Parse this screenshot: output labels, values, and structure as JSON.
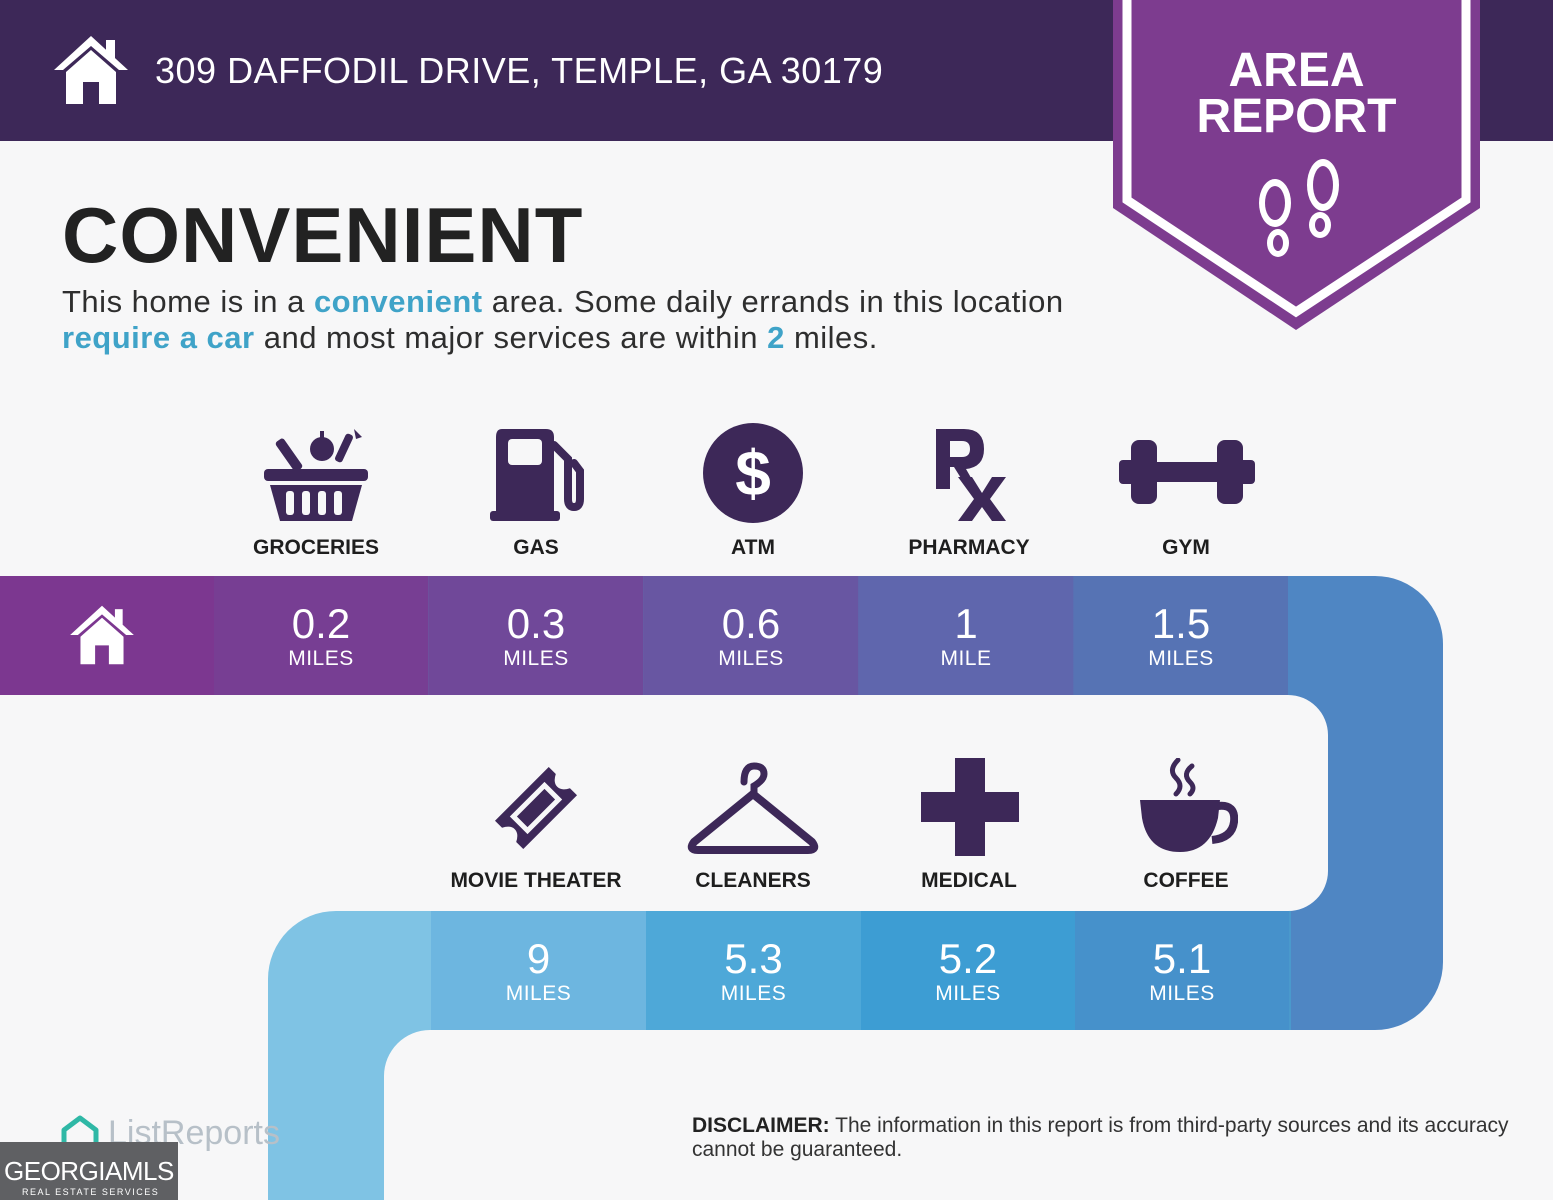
{
  "header": {
    "address": "309 DAFFODIL DRIVE, TEMPLE, GA 30179",
    "home_icon": "house-icon"
  },
  "badge": {
    "line1": "AREA",
    "line2": "REPORT",
    "icon": "footprints-icon"
  },
  "summary": {
    "headline": "CONVENIENT",
    "text_1": "This home is in a ",
    "highlight_1": "convenient",
    "text_2": " area. Some daily errands in this location ",
    "highlight_2": "require a car",
    "text_3": " and most major services are within ",
    "highlight_3": "2",
    "text_4": " miles."
  },
  "row1": [
    {
      "label": "GROCERIES",
      "distance": "0.2",
      "unit": "MILES",
      "icon": "grocery-basket-icon"
    },
    {
      "label": "GAS",
      "distance": "0.3",
      "unit": "MILES",
      "icon": "gas-pump-icon"
    },
    {
      "label": "ATM",
      "distance": "0.6",
      "unit": "MILES",
      "icon": "dollar-icon"
    },
    {
      "label": "PHARMACY",
      "distance": "1",
      "unit": "MILE",
      "icon": "rx-icon"
    },
    {
      "label": "GYM",
      "distance": "1.5",
      "unit": "MILES",
      "icon": "dumbbell-icon"
    }
  ],
  "row2": [
    {
      "label": "MOVIE THEATER",
      "distance": "9",
      "unit": "MILES",
      "icon": "ticket-icon"
    },
    {
      "label": "CLEANERS",
      "distance": "5.3",
      "unit": "MILES",
      "icon": "hanger-icon"
    },
    {
      "label": "MEDICAL",
      "distance": "5.2",
      "unit": "MILES",
      "icon": "medical-cross-icon"
    },
    {
      "label": "COFFEE",
      "distance": "5.1",
      "unit": "MILES",
      "icon": "coffee-cup-icon"
    }
  ],
  "colors": {
    "header_bg": "#3d2858",
    "badge_bg": "#7d3c8f",
    "icon_color": "#3d2858",
    "highlight": "#3fa3c8"
  },
  "disclaimer": {
    "label": "DISCLAIMER:",
    "text": " The information in this report is from third-party sources and its accuracy cannot be guaranteed."
  },
  "footer": {
    "listreports": "ListReports",
    "gmls_name": "GEORGIAMLS",
    "gmls_sub": "REAL ESTATE SERVICES"
  }
}
